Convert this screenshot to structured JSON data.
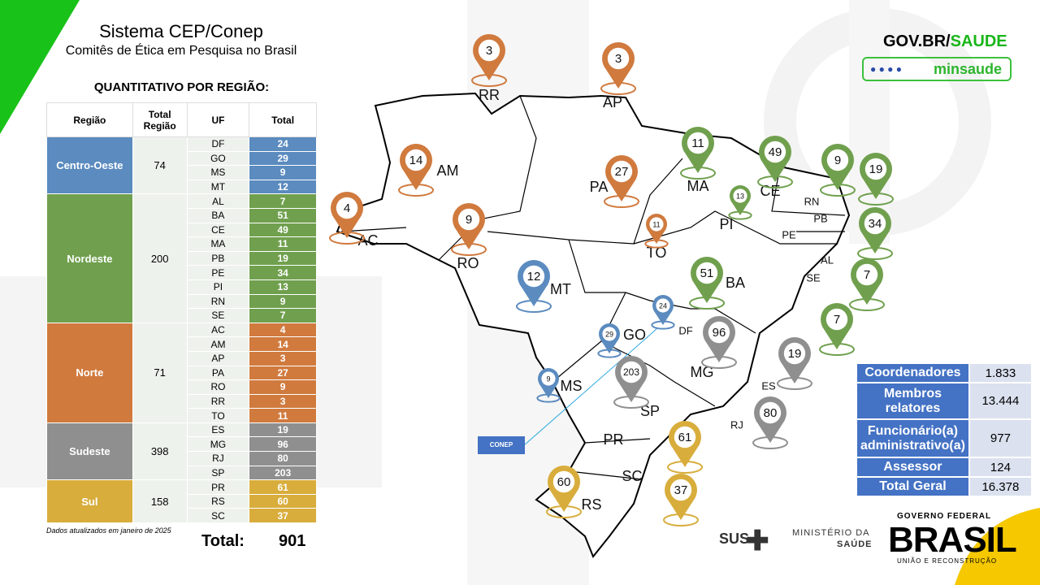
{
  "header": {
    "title": "Sistema CEP/Conep",
    "subtitle": "Comitês de Ética em Pesquisa no Brasil"
  },
  "table": {
    "title": "QUANTITATIVO POR REGIÃO:",
    "columns": [
      "Região",
      "Total Região",
      "UF",
      "Total"
    ],
    "regions": [
      {
        "name": "Centro-Oeste",
        "total": 74,
        "color": "#5b8bbf",
        "states": [
          {
            "uf": "DF",
            "total": 24
          },
          {
            "uf": "GO",
            "total": 29
          },
          {
            "uf": "MS",
            "total": 9
          },
          {
            "uf": "MT",
            "total": 12
          }
        ]
      },
      {
        "name": "Nordeste",
        "total": 200,
        "color": "#70a04e",
        "states": [
          {
            "uf": "AL",
            "total": 7
          },
          {
            "uf": "BA",
            "total": 51
          },
          {
            "uf": "CE",
            "total": 49
          },
          {
            "uf": "MA",
            "total": 11
          },
          {
            "uf": "PB",
            "total": 19
          },
          {
            "uf": "PE",
            "total": 34
          },
          {
            "uf": "PI",
            "total": 13
          },
          {
            "uf": "RN",
            "total": 9
          },
          {
            "uf": "SE",
            "total": 7
          }
        ]
      },
      {
        "name": "Norte",
        "total": 71,
        "color": "#d07a3e",
        "states": [
          {
            "uf": "AC",
            "total": 4
          },
          {
            "uf": "AM",
            "total": 14
          },
          {
            "uf": "AP",
            "total": 3
          },
          {
            "uf": "PA",
            "total": 27
          },
          {
            "uf": "RO",
            "total": 9
          },
          {
            "uf": "RR",
            "total": 3
          },
          {
            "uf": "TO",
            "total": 11
          }
        ]
      },
      {
        "name": "Sudeste",
        "total": 398,
        "color": "#8f8f8f",
        "states": [
          {
            "uf": "ES",
            "total": 19
          },
          {
            "uf": "MG",
            "total": 96
          },
          {
            "uf": "RJ",
            "total": 80
          },
          {
            "uf": "SP",
            "total": 203
          }
        ]
      },
      {
        "name": "Sul",
        "total": 158,
        "color": "#d8ad3c",
        "states": [
          {
            "uf": "PR",
            "total": 61
          },
          {
            "uf": "RS",
            "total": 60
          },
          {
            "uf": "SC",
            "total": 37
          }
        ]
      }
    ],
    "note": "Dados atualizados em janeiro de 2025"
  },
  "grand_total": {
    "label": "Total:",
    "value": 901
  },
  "conep_label": "CONEP",
  "members": [
    {
      "label": "Coordenadores",
      "value": "1.833"
    },
    {
      "label": "Membros relatores",
      "value": "13.444"
    },
    {
      "label": "Funcionário(a) administrativo(a)",
      "value": "977"
    },
    {
      "label": "Assessor",
      "value": "124"
    },
    {
      "label": "Total Geral",
      "value": "16.378"
    }
  ],
  "logos": {
    "govbr": "GOV.BR/",
    "saude": "SAUDE",
    "minsaude": "minsaude",
    "sus": "SUS",
    "ministerio": "MINISTÉRIO DA",
    "ministerio2": "SAÚDE",
    "governo": "GOVERNO FEDERAL",
    "brasil": "BRASIL",
    "uniao": "UNIÃO E RECONSTRUÇÃO"
  }
}
